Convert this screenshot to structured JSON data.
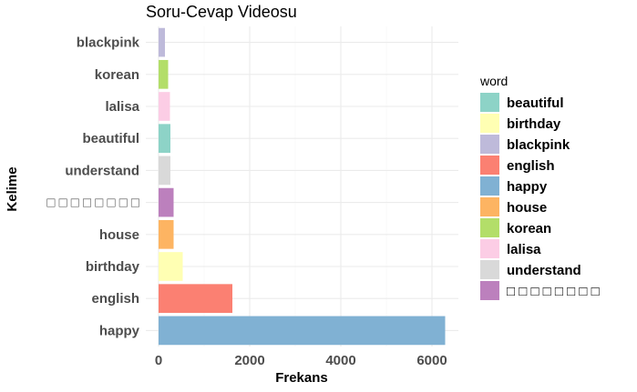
{
  "chart_data": {
    "type": "bar",
    "orientation": "horizontal",
    "title": "Soru-Cevap Videosu",
    "xlabel": "Frekans",
    "ylabel": "Kelime",
    "xlim": [
      0,
      6300
    ],
    "xticks": [
      0,
      2000,
      4000,
      6000
    ],
    "grid": true,
    "legend": {
      "title": "word",
      "placement": "right"
    },
    "categories": [
      "happy",
      "english",
      "birthday",
      "house",
      "□ □ □ □ □ □ □ □",
      "understand",
      "beautiful",
      "lalisa",
      "korean",
      "blackpink"
    ],
    "values": [
      6290,
      1620,
      530,
      330,
      330,
      260,
      260,
      250,
      210,
      140
    ],
    "colors": [
      "#80b1d3",
      "#fb8072",
      "#ffffb3",
      "#fdb462",
      "#bc80bd",
      "#d9d9d9",
      "#8dd3c7",
      "#fccde5",
      "#b3de69",
      "#bebada"
    ],
    "legend_entries": [
      {
        "label": "beautiful",
        "color": "#8dd3c7"
      },
      {
        "label": "birthday",
        "color": "#ffffb3"
      },
      {
        "label": "blackpink",
        "color": "#bebada"
      },
      {
        "label": "english",
        "color": "#fb8072"
      },
      {
        "label": "happy",
        "color": "#80b1d3"
      },
      {
        "label": "house",
        "color": "#fdb462"
      },
      {
        "label": "korean",
        "color": "#b3de69"
      },
      {
        "label": "lalisa",
        "color": "#fccde5"
      },
      {
        "label": "understand",
        "color": "#d9d9d9"
      },
      {
        "label": "□ □ □ □ □ □ □ □",
        "color": "#bc80bd"
      }
    ]
  }
}
